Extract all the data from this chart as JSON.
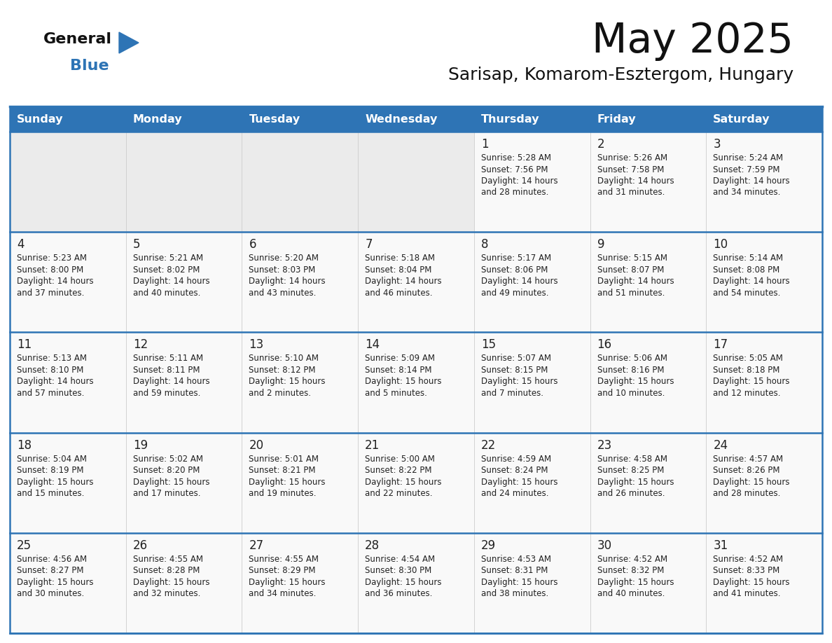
{
  "title": "May 2025",
  "subtitle": "Sarisap, Komarom-Esztergom, Hungary",
  "header_color": "#2e74b5",
  "header_text_color": "#ffffff",
  "empty_cell_bg": "#ebebeb",
  "filled_cell_bg": "#f9f9f9",
  "text_color": "#222222",
  "line_color": "#2e74b5",
  "logo_text_color": "#111111",
  "logo_blue_color": "#2e74b5",
  "days_of_week": [
    "Sunday",
    "Monday",
    "Tuesday",
    "Wednesday",
    "Thursday",
    "Friday",
    "Saturday"
  ],
  "calendar_data": [
    [
      null,
      null,
      null,
      null,
      {
        "day": "1",
        "sunrise": "5:28 AM",
        "sunset": "7:56 PM",
        "daylight_h": "14 hours",
        "daylight_m": "and 28 minutes."
      },
      {
        "day": "2",
        "sunrise": "5:26 AM",
        "sunset": "7:58 PM",
        "daylight_h": "14 hours",
        "daylight_m": "and 31 minutes."
      },
      {
        "day": "3",
        "sunrise": "5:24 AM",
        "sunset": "7:59 PM",
        "daylight_h": "14 hours",
        "daylight_m": "and 34 minutes."
      }
    ],
    [
      {
        "day": "4",
        "sunrise": "5:23 AM",
        "sunset": "8:00 PM",
        "daylight_h": "14 hours",
        "daylight_m": "and 37 minutes."
      },
      {
        "day": "5",
        "sunrise": "5:21 AM",
        "sunset": "8:02 PM",
        "daylight_h": "14 hours",
        "daylight_m": "and 40 minutes."
      },
      {
        "day": "6",
        "sunrise": "5:20 AM",
        "sunset": "8:03 PM",
        "daylight_h": "14 hours",
        "daylight_m": "and 43 minutes."
      },
      {
        "day": "7",
        "sunrise": "5:18 AM",
        "sunset": "8:04 PM",
        "daylight_h": "14 hours",
        "daylight_m": "and 46 minutes."
      },
      {
        "day": "8",
        "sunrise": "5:17 AM",
        "sunset": "8:06 PM",
        "daylight_h": "14 hours",
        "daylight_m": "and 49 minutes."
      },
      {
        "day": "9",
        "sunrise": "5:15 AM",
        "sunset": "8:07 PM",
        "daylight_h": "14 hours",
        "daylight_m": "and 51 minutes."
      },
      {
        "day": "10",
        "sunrise": "5:14 AM",
        "sunset": "8:08 PM",
        "daylight_h": "14 hours",
        "daylight_m": "and 54 minutes."
      }
    ],
    [
      {
        "day": "11",
        "sunrise": "5:13 AM",
        "sunset": "8:10 PM",
        "daylight_h": "14 hours",
        "daylight_m": "and 57 minutes."
      },
      {
        "day": "12",
        "sunrise": "5:11 AM",
        "sunset": "8:11 PM",
        "daylight_h": "14 hours",
        "daylight_m": "and 59 minutes."
      },
      {
        "day": "13",
        "sunrise": "5:10 AM",
        "sunset": "8:12 PM",
        "daylight_h": "15 hours",
        "daylight_m": "and 2 minutes."
      },
      {
        "day": "14",
        "sunrise": "5:09 AM",
        "sunset": "8:14 PM",
        "daylight_h": "15 hours",
        "daylight_m": "and 5 minutes."
      },
      {
        "day": "15",
        "sunrise": "5:07 AM",
        "sunset": "8:15 PM",
        "daylight_h": "15 hours",
        "daylight_m": "and 7 minutes."
      },
      {
        "day": "16",
        "sunrise": "5:06 AM",
        "sunset": "8:16 PM",
        "daylight_h": "15 hours",
        "daylight_m": "and 10 minutes."
      },
      {
        "day": "17",
        "sunrise": "5:05 AM",
        "sunset": "8:18 PM",
        "daylight_h": "15 hours",
        "daylight_m": "and 12 minutes."
      }
    ],
    [
      {
        "day": "18",
        "sunrise": "5:04 AM",
        "sunset": "8:19 PM",
        "daylight_h": "15 hours",
        "daylight_m": "and 15 minutes."
      },
      {
        "day": "19",
        "sunrise": "5:02 AM",
        "sunset": "8:20 PM",
        "daylight_h": "15 hours",
        "daylight_m": "and 17 minutes."
      },
      {
        "day": "20",
        "sunrise": "5:01 AM",
        "sunset": "8:21 PM",
        "daylight_h": "15 hours",
        "daylight_m": "and 19 minutes."
      },
      {
        "day": "21",
        "sunrise": "5:00 AM",
        "sunset": "8:22 PM",
        "daylight_h": "15 hours",
        "daylight_m": "and 22 minutes."
      },
      {
        "day": "22",
        "sunrise": "4:59 AM",
        "sunset": "8:24 PM",
        "daylight_h": "15 hours",
        "daylight_m": "and 24 minutes."
      },
      {
        "day": "23",
        "sunrise": "4:58 AM",
        "sunset": "8:25 PM",
        "daylight_h": "15 hours",
        "daylight_m": "and 26 minutes."
      },
      {
        "day": "24",
        "sunrise": "4:57 AM",
        "sunset": "8:26 PM",
        "daylight_h": "15 hours",
        "daylight_m": "and 28 minutes."
      }
    ],
    [
      {
        "day": "25",
        "sunrise": "4:56 AM",
        "sunset": "8:27 PM",
        "daylight_h": "15 hours",
        "daylight_m": "and 30 minutes."
      },
      {
        "day": "26",
        "sunrise": "4:55 AM",
        "sunset": "8:28 PM",
        "daylight_h": "15 hours",
        "daylight_m": "and 32 minutes."
      },
      {
        "day": "27",
        "sunrise": "4:55 AM",
        "sunset": "8:29 PM",
        "daylight_h": "15 hours",
        "daylight_m": "and 34 minutes."
      },
      {
        "day": "28",
        "sunrise": "4:54 AM",
        "sunset": "8:30 PM",
        "daylight_h": "15 hours",
        "daylight_m": "and 36 minutes."
      },
      {
        "day": "29",
        "sunrise": "4:53 AM",
        "sunset": "8:31 PM",
        "daylight_h": "15 hours",
        "daylight_m": "and 38 minutes."
      },
      {
        "day": "30",
        "sunrise": "4:52 AM",
        "sunset": "8:32 PM",
        "daylight_h": "15 hours",
        "daylight_m": "and 40 minutes."
      },
      {
        "day": "31",
        "sunrise": "4:52 AM",
        "sunset": "8:33 PM",
        "daylight_h": "15 hours",
        "daylight_m": "and 41 minutes."
      }
    ]
  ]
}
